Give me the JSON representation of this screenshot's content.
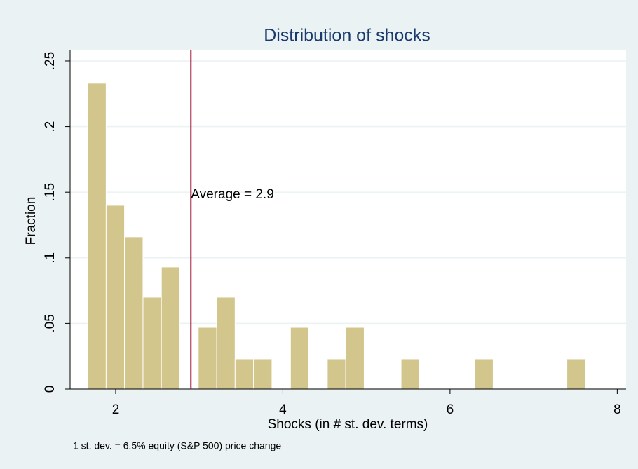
{
  "chart_data": {
    "type": "histogram",
    "title": "Distribution of shocks",
    "x_label": "Shocks (in # st. dev. terms)",
    "y_label": "Fraction",
    "note": "1 st. dev. = 6.5% equity (S&P 500) price change",
    "bins": [
      1.665,
      1.886,
      2.106,
      2.327,
      2.547,
      2.768,
      2.988,
      3.209,
      3.429,
      3.65,
      3.87,
      4.091,
      4.311,
      4.532,
      4.752,
      4.973,
      5.193,
      5.414,
      5.634,
      5.855,
      6.075,
      6.296,
      6.516,
      6.737,
      6.957,
      7.178,
      7.398,
      7.619
    ],
    "values": [
      0.233,
      0.14,
      0.116,
      0.07,
      0.093,
      0,
      0.047,
      0.07,
      0.023,
      0.023,
      0,
      0.047,
      0,
      0.023,
      0.047,
      0,
      0,
      0.023,
      0,
      0,
      0,
      0.023,
      0,
      0,
      0,
      0,
      0.023
    ],
    "color": "#d3c68d",
    "reference_line": {
      "value": 2.9,
      "label": "Average = 2.9",
      "color": "#a51d3a"
    },
    "xlim": [
      1.455,
      8.106
    ],
    "xticks": [
      2,
      4,
      6,
      8
    ],
    "ylim": [
      0,
      0.258
    ],
    "yticks": [
      0,
      {
        "value": 0.05,
        "label": ".05"
      },
      {
        "value": 0.1,
        "label": ".1"
      },
      {
        "value": 0.15,
        "label": ".15"
      },
      {
        "value": 0.2,
        "label": ".2"
      },
      {
        "value": 0.25,
        "label": ".25"
      }
    ],
    "grid": true
  }
}
